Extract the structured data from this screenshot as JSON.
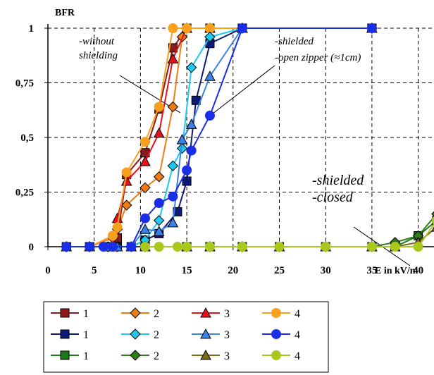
{
  "chart_data": {
    "type": "line",
    "ylabel": "BFR",
    "xlabel": "E in kV/m",
    "xlim": [
      0,
      42
    ],
    "ylim": [
      0,
      1
    ],
    "x_ticks": [
      "0",
      "5",
      "10",
      "15",
      "20",
      "25",
      "30",
      "35",
      "40"
    ],
    "y_ticks": [
      "0",
      "0,25",
      "0,5",
      "0,75",
      "1"
    ],
    "grid": true,
    "legend_position": "bottom-left",
    "annotations": [
      {
        "lines": [
          "-without",
          "shielding"
        ],
        "size": "small"
      },
      {
        "lines": [
          "-shielded",
          "-open zipper (≈1cm)"
        ],
        "size": "small"
      },
      {
        "lines": [
          "-shielded",
          "-closed"
        ],
        "size": "large"
      }
    ],
    "series": [
      {
        "name": "1",
        "group": "without shielding",
        "marker": "square",
        "color": "#8b1a1a",
        "x": [
          2,
          4.5,
          7,
          7.5,
          8.5,
          10.5,
          12,
          13.5,
          15,
          17.5,
          21,
          35
        ],
        "y": [
          0,
          0,
          0,
          0.04,
          0.33,
          0.43,
          0.63,
          0.91,
          1,
          1,
          1,
          1
        ]
      },
      {
        "name": "2",
        "group": "without shielding",
        "marker": "diamond",
        "color": "#f07c12",
        "x": [
          2,
          4.5,
          7,
          7.5,
          8.5,
          10.5,
          12,
          13.5,
          14.5,
          15,
          21,
          35
        ],
        "y": [
          0,
          0,
          0.04,
          0.08,
          0.19,
          0.27,
          0.32,
          0.64,
          0.96,
          1,
          1,
          1
        ]
      },
      {
        "name": "3",
        "group": "without shielding",
        "marker": "triangle",
        "color": "#e8101a",
        "x": [
          2,
          4.5,
          7,
          7.5,
          8.5,
          10.5,
          12,
          13.5,
          15,
          17.5,
          21,
          35
        ],
        "y": [
          0,
          0,
          0,
          0.13,
          0.3,
          0.39,
          0.52,
          0.86,
          1,
          1,
          1,
          1
        ]
      },
      {
        "name": "4",
        "group": "without shielding",
        "marker": "circle",
        "color": "#f7a01e",
        "x": [
          2,
          4.5,
          7,
          7.5,
          8.5,
          10.5,
          12,
          13.5,
          15,
          17.5,
          21,
          35
        ],
        "y": [
          0,
          0,
          0.05,
          0.09,
          0.34,
          0.48,
          0.64,
          1,
          1,
          1,
          1,
          1
        ]
      },
      {
        "name": "1",
        "group": "shielded, open zipper",
        "marker": "square",
        "color": "#0e1a78",
        "x": [
          2,
          4.5,
          6.5,
          7.5,
          9,
          10.5,
          12,
          14,
          15,
          16,
          17.5,
          21,
          35
        ],
        "y": [
          0,
          0,
          0,
          0,
          0,
          0.03,
          0.06,
          0.16,
          0.3,
          0.67,
          0.93,
          1,
          1
        ]
      },
      {
        "name": "2",
        "group": "shielded, open zipper",
        "marker": "diamond",
        "color": "#1ec8f0",
        "x": [
          2,
          4.5,
          6.5,
          7.5,
          9,
          10.5,
          12,
          13.5,
          14.5,
          15.5,
          17.5,
          21,
          35
        ],
        "y": [
          0,
          0,
          0,
          0,
          0,
          0.03,
          0.12,
          0.37,
          0.45,
          0.82,
          0.96,
          1,
          1
        ]
      },
      {
        "name": "3",
        "group": "shielded, open zipper",
        "marker": "triangle",
        "color": "#3b82e8",
        "x": [
          2,
          4.5,
          6.5,
          7.5,
          9,
          10.5,
          12,
          13.5,
          14.5,
          15.5,
          17.5,
          21,
          35
        ],
        "y": [
          0,
          0,
          0,
          0,
          0,
          0.08,
          0.07,
          0.11,
          0.49,
          0.56,
          0.78,
          1,
          1
        ]
      },
      {
        "name": "4",
        "group": "shielded, open zipper",
        "marker": "circle",
        "color": "#1a2ee8",
        "x": [
          2,
          4.5,
          6,
          7,
          9,
          10.5,
          12,
          13.5,
          15,
          15.5,
          17.5,
          21,
          35
        ],
        "y": [
          0,
          0,
          0,
          0,
          0,
          0.13,
          0.2,
          0.23,
          0.35,
          0.44,
          0.6,
          1,
          1
        ]
      },
      {
        "name": "1",
        "group": "shielded, closed",
        "marker": "square",
        "color": "#1a7a1a",
        "x": [
          10.5,
          15,
          17.5,
          21,
          25,
          30,
          35,
          37.5,
          40,
          42
        ],
        "y": [
          0,
          0,
          0,
          0,
          0,
          0,
          0,
          0,
          0.05,
          0.12
        ]
      },
      {
        "name": "2",
        "group": "shielded, closed",
        "marker": "diamond",
        "color": "#2e7d1a",
        "x": [
          10.5,
          15,
          17.5,
          21,
          25,
          30,
          35,
          37.5,
          40,
          42
        ],
        "y": [
          0,
          0,
          0,
          0,
          0,
          0,
          0,
          0.02,
          0.05,
          0.15
        ]
      },
      {
        "name": "3",
        "group": "shielded, closed",
        "marker": "triangle",
        "color": "#7a6a1a",
        "x": [
          10.5,
          15,
          17.5,
          21,
          25,
          30,
          35,
          37.5,
          40,
          42
        ],
        "y": [
          0,
          0,
          0,
          0,
          0,
          0,
          0,
          0,
          0.02,
          0.09
        ]
      },
      {
        "name": "4",
        "group": "shielded, closed",
        "marker": "circle",
        "color": "#a8c81e",
        "x": [
          10.5,
          12,
          14,
          15,
          17.5,
          21,
          25,
          30,
          35,
          37.5,
          40,
          42
        ],
        "y": [
          0,
          0,
          0,
          0,
          0,
          0,
          0,
          0,
          0,
          0,
          0,
          0.12
        ]
      }
    ]
  }
}
